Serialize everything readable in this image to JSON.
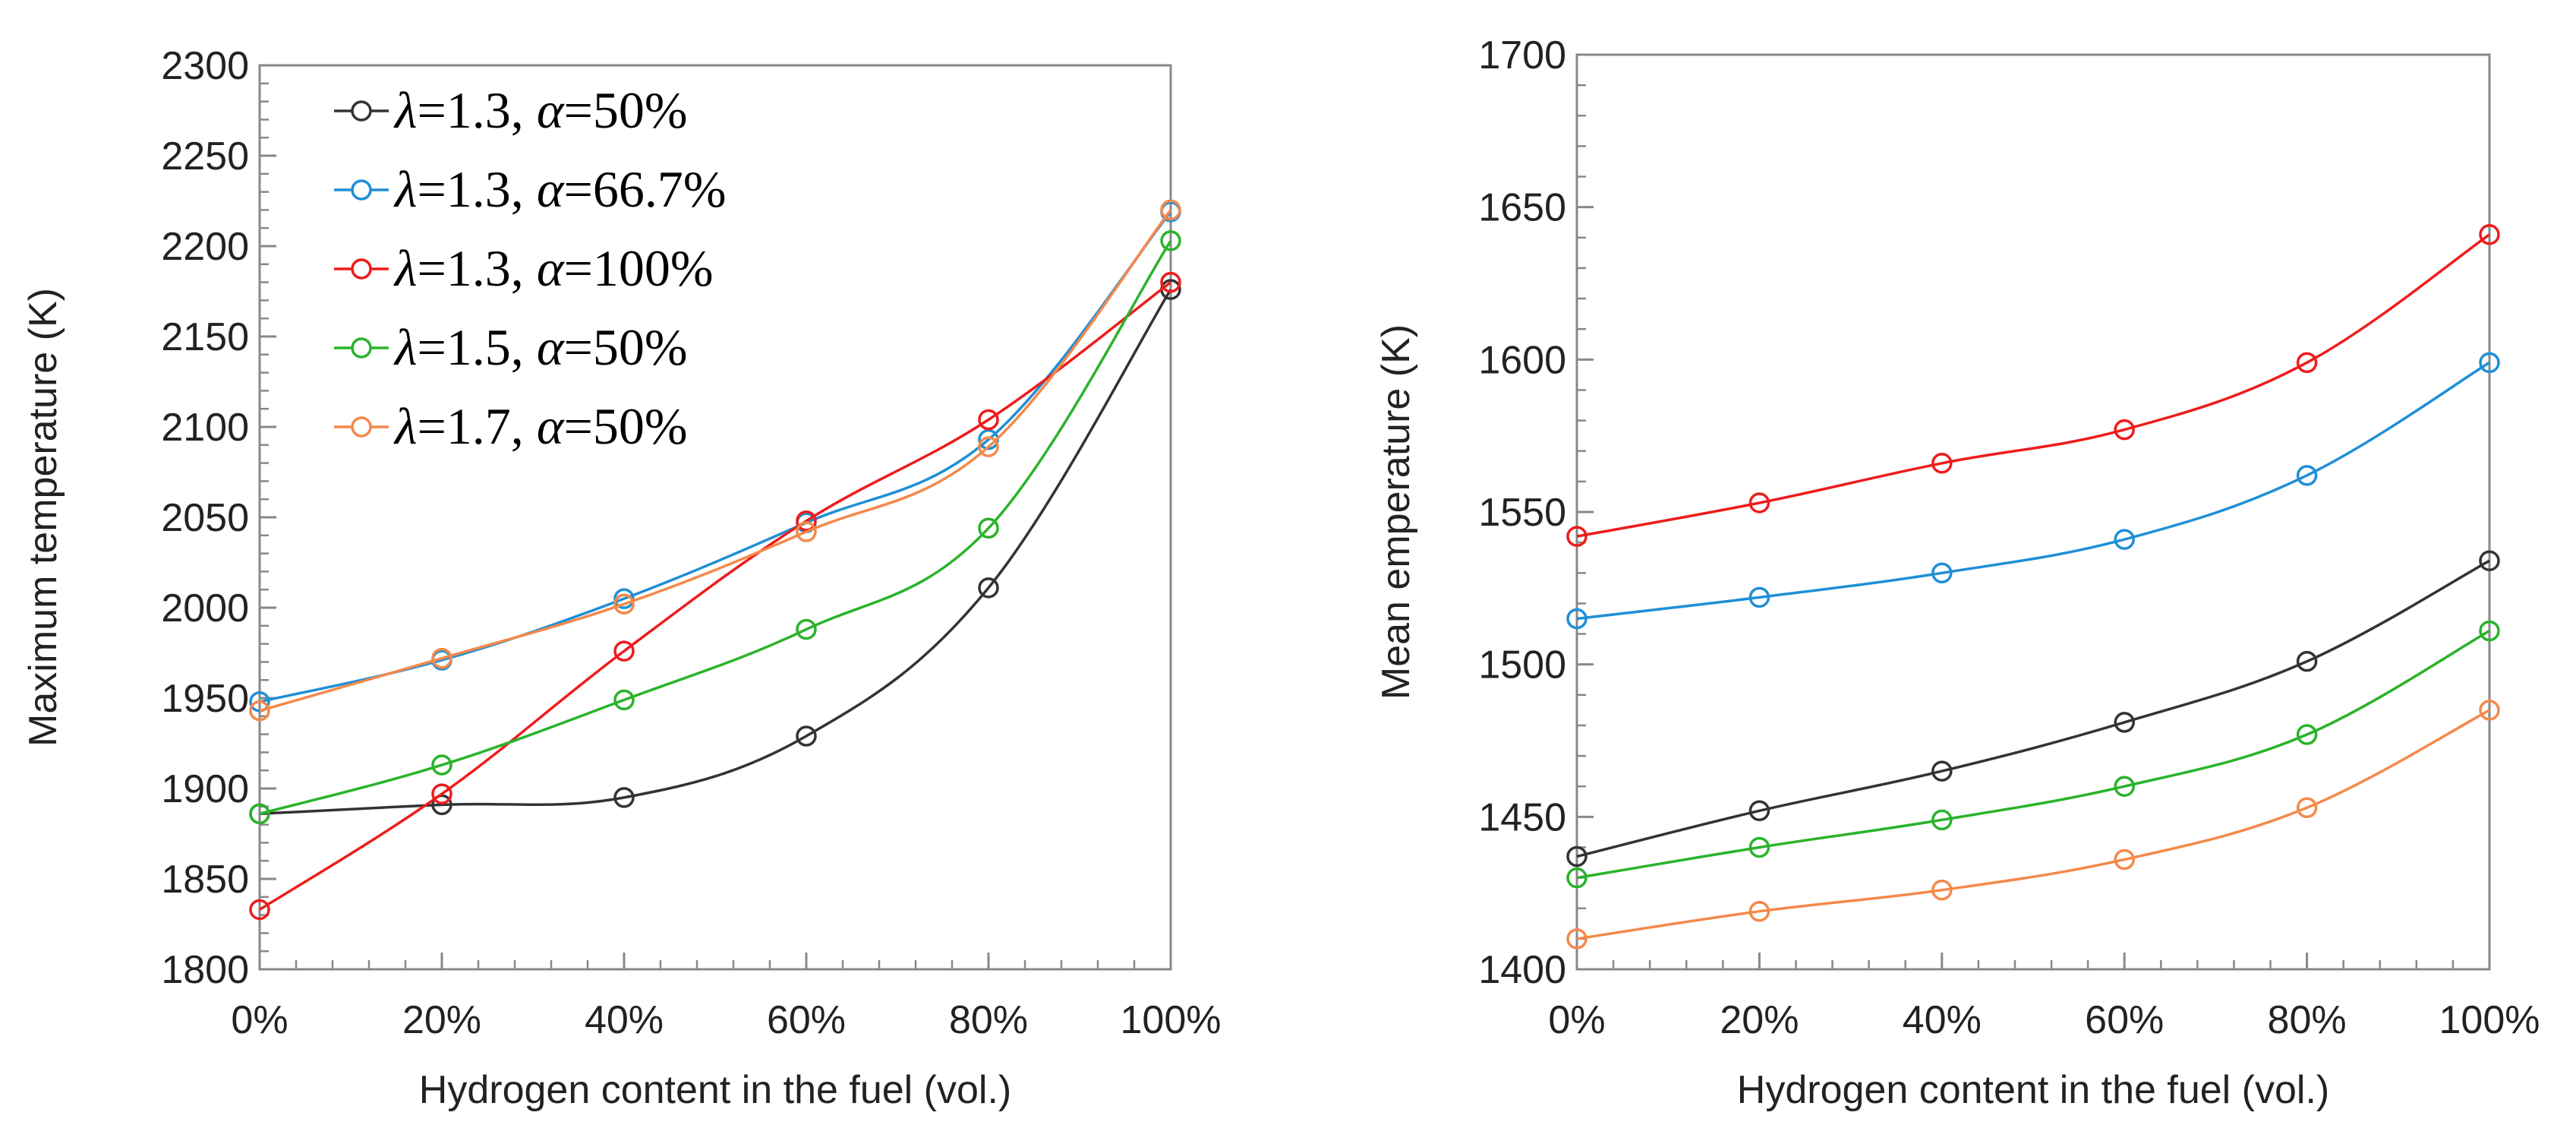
{
  "chart_data": [
    {
      "type": "line",
      "xlabel": "Hydrogen content in the fuel (vol.)",
      "ylabel": "Maximum temperature (K)",
      "x": [
        "0%",
        "20%",
        "40%",
        "60%",
        "80%",
        "100%"
      ],
      "ylim": [
        1800,
        2300
      ],
      "yticks": [
        "1800",
        "1850",
        "1900",
        "1950",
        "2000",
        "2050",
        "2100",
        "2150",
        "2200",
        "2250",
        "2300"
      ],
      "legend_position": "top-left",
      "grid": false,
      "series": [
        {
          "name": "λ=1.3, α=50%",
          "lambda": "1.3",
          "alpha": "50%",
          "color": "#333333",
          "values": [
            1886,
            1891,
            1895,
            1929,
            2011,
            2176
          ]
        },
        {
          "name": "λ=1.3, α=66.7%",
          "lambda": "1.3",
          "alpha": "66.7%",
          "color": "#1f8fd6",
          "values": [
            1948,
            1971,
            2005,
            2047,
            2093,
            2219
          ]
        },
        {
          "name": "λ=1.3, α=100%",
          "lambda": "1.3",
          "alpha": "100%",
          "color": "#ee1c1c",
          "values": [
            1833,
            1897,
            1976,
            2048,
            2104,
            2180
          ]
        },
        {
          "name": "λ=1.5, α=50%",
          "lambda": "1.5",
          "alpha": "50%",
          "color": "#2ab32a",
          "values": [
            1886,
            1913,
            1949,
            1988,
            2044,
            2203
          ]
        },
        {
          "name": "λ=1.7, α=50%",
          "lambda": "1.7",
          "alpha": "50%",
          "color": "#f4894a",
          "values": [
            1943,
            1972,
            2002,
            2042,
            2089,
            2220
          ]
        }
      ]
    },
    {
      "type": "line",
      "xlabel": "Hydrogen content in the fuel (vol.)",
      "ylabel": "Mean emperature (K)",
      "x": [
        "0%",
        "20%",
        "40%",
        "60%",
        "80%",
        "100%"
      ],
      "ylim": [
        1400,
        1700
      ],
      "yticks": [
        "1400",
        "1450",
        "1500",
        "1550",
        "1600",
        "1650",
        "1700"
      ],
      "grid": false,
      "series": [
        {
          "color": "#333333",
          "values": [
            1437,
            1452,
            1465,
            1481,
            1501,
            1534
          ]
        },
        {
          "color": "#1f8fd6",
          "values": [
            1515,
            1522,
            1530,
            1541,
            1562,
            1599
          ]
        },
        {
          "color": "#ee1c1c",
          "values": [
            1542,
            1553,
            1566,
            1577,
            1599,
            1641
          ]
        },
        {
          "color": "#2ab32a",
          "values": [
            1430,
            1440,
            1449,
            1460,
            1477,
            1511
          ]
        },
        {
          "color": "#f4894a",
          "values": [
            1410,
            1419,
            1426,
            1436,
            1453,
            1485
          ]
        }
      ]
    }
  ]
}
